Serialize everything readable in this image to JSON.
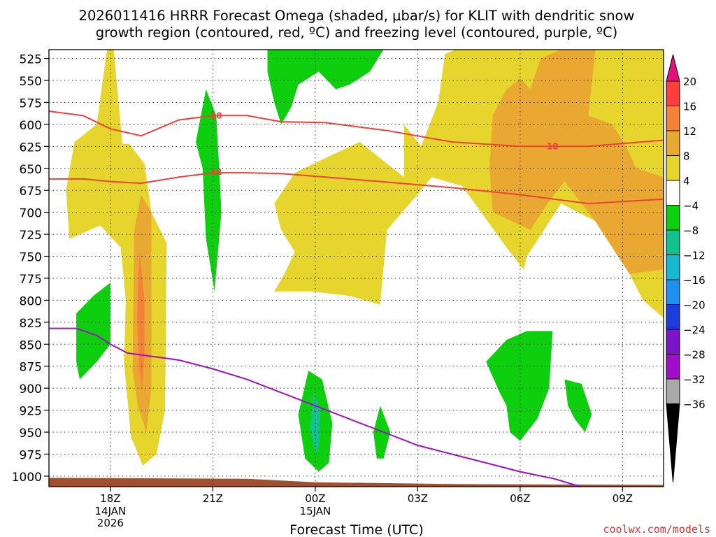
{
  "chart_data": {
    "type": "heatmap",
    "title_line1": "2026011416 HRRR Forecast Omega (shaded, μbar/s) for KLIT with dendritic snow",
    "title_line2": "growth region (contoured, red, ºC) and freezing level (contoured, purple, ºC)",
    "xlabel": "Forecast Time (UTC)",
    "credit": "coolwx.com/models",
    "x_range_hours": [
      -1.8,
      16.2
    ],
    "y_range_hpa": [
      515,
      1012
    ],
    "y_ticks": [
      525,
      550,
      575,
      600,
      625,
      650,
      675,
      700,
      725,
      750,
      775,
      800,
      825,
      850,
      875,
      900,
      925,
      950,
      975,
      1000
    ],
    "x_ticks": [
      {
        "h": 0,
        "label": "18Z",
        "sub1": "14JAN",
        "sub2": "2026"
      },
      {
        "h": 3,
        "label": "21Z",
        "sub1": "",
        "sub2": ""
      },
      {
        "h": 6,
        "label": "00Z",
        "sub1": "15JAN",
        "sub2": ""
      },
      {
        "h": 9,
        "label": "03Z",
        "sub1": "",
        "sub2": ""
      },
      {
        "h": 12,
        "label": "06Z",
        "sub1": "",
        "sub2": ""
      },
      {
        "h": 15,
        "label": "09Z",
        "sub1": "",
        "sub2": ""
      }
    ],
    "colorbar": {
      "labels": [
        "20",
        "16",
        "12",
        "8",
        "4",
        "−4",
        "−8",
        "−12",
        "−16",
        "−20",
        "−24",
        "−28",
        "−32",
        "−36"
      ],
      "colors": [
        "#ff3e3e",
        "#f5823a",
        "#e8a832",
        "#e6d52c",
        "#ffffff",
        "#0ecf0e",
        "#12c28e",
        "#16b8d2",
        "#1e90f0",
        "#1e3cdc",
        "#7a16c8",
        "#a00ec8",
        "#a8a8a8"
      ],
      "top_color": "#e6117a",
      "bottom_color": "#000000"
    },
    "omega_regions": [
      {
        "value": 6,
        "color": "#e6d52c",
        "pts": [
          [
            -0.1,
            515
          ],
          [
            0.1,
            515
          ],
          [
            0.35,
            622
          ],
          [
            0.55,
            622
          ],
          [
            1.0,
            645
          ],
          [
            1.2,
            700
          ],
          [
            1.65,
            735
          ],
          [
            1.6,
            925
          ],
          [
            1.35,
            975
          ],
          [
            0.95,
            988
          ],
          [
            0.6,
            955
          ],
          [
            0.4,
            870
          ],
          [
            0.45,
            800
          ],
          [
            0.3,
            740
          ],
          [
            -0.3,
            715
          ],
          [
            -0.6,
            720
          ],
          [
            -1.2,
            730
          ],
          [
            -1.3,
            675
          ],
          [
            -1.05,
            620
          ],
          [
            -0.4,
            600
          ]
        ]
      },
      {
        "value": 6,
        "color": "#e6d52c",
        "pts": [
          [
            4.8,
            690
          ],
          [
            5.4,
            655
          ],
          [
            6.2,
            640
          ],
          [
            7.3,
            620
          ],
          [
            8.6,
            660
          ],
          [
            8.6,
            600
          ],
          [
            9.1,
            625
          ],
          [
            9.6,
            575
          ],
          [
            9.8,
            520
          ],
          [
            10.1,
            515
          ],
          [
            16.2,
            515
          ],
          [
            16.2,
            820
          ],
          [
            15.6,
            800
          ],
          [
            15.2,
            770
          ],
          [
            14.2,
            710
          ],
          [
            13.2,
            690
          ],
          [
            12.2,
            750
          ],
          [
            12.1,
            765
          ],
          [
            11.6,
            740
          ],
          [
            10.3,
            670
          ],
          [
            9.4,
            660
          ],
          [
            9.1,
            675
          ],
          [
            8.1,
            720
          ],
          [
            7.9,
            805
          ],
          [
            7.0,
            795
          ],
          [
            5.9,
            790
          ],
          [
            4.8,
            790
          ],
          [
            5.1,
            770
          ],
          [
            5.4,
            745
          ],
          [
            5.0,
            720
          ]
        ]
      },
      {
        "value": 10,
        "color": "#e8a832",
        "pts": [
          [
            0.9,
            680
          ],
          [
            1.2,
            700
          ],
          [
            1.2,
            900
          ],
          [
            1.05,
            950
          ],
          [
            0.8,
            920
          ],
          [
            0.65,
            880
          ],
          [
            0.7,
            720
          ]
        ]
      },
      {
        "value": 10,
        "color": "#e8a832",
        "pts": [
          [
            11.2,
            590
          ],
          [
            11.6,
            560
          ],
          [
            12.0,
            548
          ],
          [
            12.3,
            560
          ],
          [
            12.6,
            525
          ],
          [
            13.2,
            515
          ],
          [
            14.2,
            515
          ],
          [
            14.0,
            590
          ],
          [
            14.7,
            600
          ],
          [
            15.1,
            625
          ],
          [
            15.4,
            650
          ],
          [
            16.2,
            660
          ],
          [
            16.2,
            765
          ],
          [
            15.2,
            770
          ],
          [
            14.2,
            710
          ],
          [
            13.3,
            665
          ],
          [
            12.8,
            690
          ],
          [
            12.3,
            720
          ],
          [
            11.2,
            700
          ],
          [
            11.1,
            650
          ]
        ]
      },
      {
        "value": 14,
        "color": "#f5823a",
        "pts": [
          [
            0.85,
            745
          ],
          [
            1.0,
            800
          ],
          [
            1.0,
            860
          ],
          [
            0.92,
            900
          ],
          [
            0.85,
            880
          ],
          [
            0.78,
            820
          ]
        ]
      },
      {
        "value": -6,
        "color": "#0ecf0e",
        "pts": [
          [
            4.6,
            515
          ],
          [
            8.0,
            515
          ],
          [
            7.6,
            540
          ],
          [
            7.0,
            555
          ],
          [
            6.6,
            560
          ],
          [
            6.1,
            540
          ],
          [
            5.5,
            555
          ],
          [
            5.3,
            580
          ],
          [
            5.0,
            600
          ],
          [
            4.8,
            575
          ],
          [
            4.6,
            540
          ]
        ]
      },
      {
        "value": -6,
        "color": "#0ecf0e",
        "pts": [
          [
            2.8,
            560
          ],
          [
            3.1,
            590
          ],
          [
            3.2,
            660
          ],
          [
            3.25,
            700
          ],
          [
            3.05,
            790
          ],
          [
            2.8,
            730
          ],
          [
            2.7,
            650
          ],
          [
            2.5,
            620
          ]
        ]
      },
      {
        "value": -6,
        "color": "#0ecf0e",
        "pts": [
          [
            -0.5,
            795
          ],
          [
            -1.0,
            815
          ],
          [
            -1.0,
            870
          ],
          [
            -0.9,
            890
          ],
          [
            -0.4,
            870
          ],
          [
            0.0,
            850
          ],
          [
            0.0,
            780
          ]
        ]
      },
      {
        "value": -6,
        "color": "#0ecf0e",
        "pts": [
          [
            5.8,
            880
          ],
          [
            6.2,
            890
          ],
          [
            6.5,
            940
          ],
          [
            6.4,
            985
          ],
          [
            6.1,
            995
          ],
          [
            5.7,
            980
          ],
          [
            5.5,
            930
          ]
        ]
      },
      {
        "value": -6,
        "color": "#0ecf0e",
        "pts": [
          [
            7.9,
            920
          ],
          [
            8.2,
            950
          ],
          [
            8.0,
            980
          ],
          [
            7.8,
            980
          ],
          [
            7.7,
            950
          ]
        ]
      },
      {
        "value": -6,
        "color": "#0ecf0e",
        "pts": [
          [
            11.0,
            870
          ],
          [
            11.6,
            845
          ],
          [
            12.2,
            835
          ],
          [
            12.95,
            835
          ],
          [
            12.85,
            900
          ],
          [
            12.5,
            935
          ],
          [
            12.0,
            960
          ],
          [
            11.7,
            950
          ],
          [
            11.6,
            920
          ],
          [
            11.4,
            905
          ]
        ]
      },
      {
        "value": -6,
        "color": "#0ecf0e",
        "pts": [
          [
            13.3,
            890
          ],
          [
            13.8,
            895
          ],
          [
            14.1,
            930
          ],
          [
            13.9,
            950
          ],
          [
            13.6,
            935
          ],
          [
            13.4,
            920
          ]
        ]
      },
      {
        "value": -10,
        "color": "#12c28e",
        "pts": [
          [
            5.95,
            905
          ],
          [
            6.15,
            925
          ],
          [
            6.1,
            965
          ],
          [
            6.0,
            975
          ],
          [
            5.85,
            945
          ]
        ]
      }
    ],
    "dendritic_contours": [
      {
        "label": "18",
        "color": "#f0403a",
        "pts": [
          [
            -1.8,
            585
          ],
          [
            -0.8,
            590
          ],
          [
            0.0,
            605
          ],
          [
            0.9,
            613
          ],
          [
            2.0,
            595
          ],
          [
            3.0,
            590
          ],
          [
            4.0,
            590
          ],
          [
            5.0,
            597
          ],
          [
            6.3,
            598
          ],
          [
            8.1,
            607
          ],
          [
            10.0,
            620
          ],
          [
            12.0,
            625
          ],
          [
            14.0,
            625
          ],
          [
            16.2,
            618
          ]
        ],
        "label_pts": [
          [
            3.1,
            590
          ],
          [
            12.95,
            625
          ]
        ]
      },
      {
        "label": "12",
        "color": "#f0403a",
        "pts": [
          [
            -1.8,
            662
          ],
          [
            -0.8,
            662
          ],
          [
            0.0,
            665
          ],
          [
            0.9,
            667
          ],
          [
            2.0,
            660
          ],
          [
            3.0,
            655
          ],
          [
            4.0,
            655
          ],
          [
            5.0,
            656
          ],
          [
            6.3,
            660
          ],
          [
            7.9,
            665
          ],
          [
            10.0,
            672
          ],
          [
            12.0,
            680
          ],
          [
            14.0,
            690
          ],
          [
            16.2,
            685
          ]
        ],
        "label_pts": [
          [
            3.1,
            654
          ]
        ]
      }
    ],
    "freezing_level": {
      "color": "#a00ec8",
      "pts": [
        [
          -1.8,
          832
        ],
        [
          -1.0,
          832
        ],
        [
          -0.4,
          840
        ],
        [
          0.0,
          850
        ],
        [
          0.5,
          860
        ],
        [
          2.0,
          868
        ],
        [
          3.0,
          878
        ],
        [
          4.0,
          890
        ],
        [
          5.0,
          905
        ],
        [
          6.0,
          920
        ],
        [
          7.0,
          935
        ],
        [
          8.0,
          950
        ],
        [
          9.0,
          965
        ],
        [
          10.0,
          975
        ],
        [
          11.0,
          985
        ],
        [
          12.0,
          995
        ],
        [
          13.0,
          1003
        ],
        [
          13.6,
          1010
        ],
        [
          13.75,
          1012
        ]
      ]
    },
    "terrain": {
      "color": "#a05030",
      "pts": [
        [
          -1.8,
          1002
        ],
        [
          4.0,
          1003
        ],
        [
          6.0,
          1007
        ],
        [
          10.0,
          1009
        ],
        [
          16.2,
          1010
        ]
      ]
    }
  }
}
